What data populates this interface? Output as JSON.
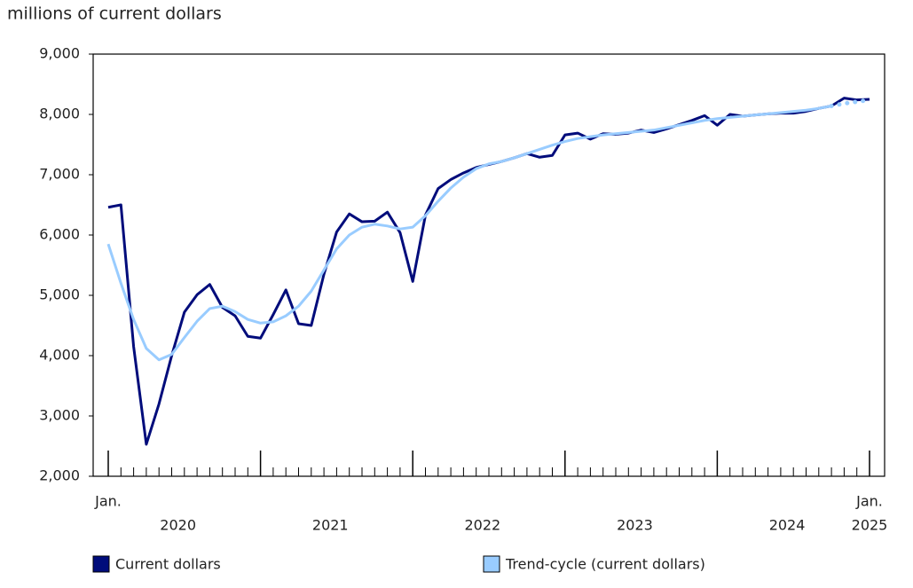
{
  "chart_data": {
    "type": "line",
    "y_axis_title": "millions of current dollars",
    "categories": [
      "Jan.",
      null,
      null,
      null,
      null,
      null,
      null,
      null,
      null,
      null,
      null,
      null,
      null,
      null,
      null,
      null,
      null,
      null,
      null,
      null,
      null,
      null,
      null,
      null,
      null,
      null,
      null,
      null,
      null,
      null,
      null,
      null,
      null,
      null,
      null,
      null,
      null,
      null,
      null,
      null,
      null,
      null,
      null,
      null,
      null,
      null,
      null,
      null,
      null,
      null,
      null,
      null,
      null,
      null,
      null,
      null,
      null,
      null,
      null,
      null,
      "Jan."
    ],
    "x_year_labels": [
      "2020",
      "2021",
      "2022",
      "2023",
      "2024",
      "2025"
    ],
    "ylim": [
      2000,
      9000
    ],
    "yticks": [
      {
        "value": 2000,
        "label": "2,000"
      },
      {
        "value": 3000,
        "label": "3,000"
      },
      {
        "value": 4000,
        "label": "4,000"
      },
      {
        "value": 5000,
        "label": "5,000"
      },
      {
        "value": 6000,
        "label": "6,000"
      },
      {
        "value": 7000,
        "label": "7,000"
      },
      {
        "value": 8000,
        "label": "8,000"
      },
      {
        "value": 9000,
        "label": "9,000"
      }
    ],
    "grid": false,
    "series": [
      {
        "name": "Current dollars",
        "color": "#000c7b",
        "values": [
          6460,
          6500,
          4150,
          2530,
          3200,
          4000,
          4720,
          5010,
          5180,
          4800,
          4660,
          4320,
          4290,
          4680,
          5090,
          4530,
          4500,
          5350,
          6050,
          6350,
          6220,
          6230,
          6380,
          6040,
          5230,
          6330,
          6770,
          6920,
          7030,
          7120,
          7170,
          7220,
          7280,
          7350,
          7290,
          7320,
          7660,
          7690,
          7590,
          7680,
          7670,
          7690,
          7740,
          7700,
          7760,
          7830,
          7900,
          7980,
          7820,
          8000,
          7970,
          7990,
          8010,
          8020,
          8020,
          8050,
          8100,
          8140,
          8270,
          8240,
          8250
        ]
      },
      {
        "name": "Trend-cycle (current dollars)",
        "color": "#99ccff",
        "dotted_from_index": 57,
        "values": [
          5850,
          5200,
          4600,
          4120,
          3930,
          4020,
          4300,
          4570,
          4780,
          4820,
          4730,
          4600,
          4540,
          4560,
          4660,
          4820,
          5070,
          5420,
          5770,
          6000,
          6130,
          6180,
          6150,
          6100,
          6130,
          6320,
          6560,
          6780,
          6960,
          7100,
          7180,
          7220,
          7280,
          7350,
          7420,
          7490,
          7550,
          7600,
          7630,
          7660,
          7680,
          7700,
          7720,
          7740,
          7780,
          7820,
          7860,
          7900,
          7930,
          7950,
          7970,
          7990,
          8010,
          8030,
          8050,
          8070,
          8100,
          8140,
          8180,
          8210,
          8240
        ]
      }
    ]
  }
}
